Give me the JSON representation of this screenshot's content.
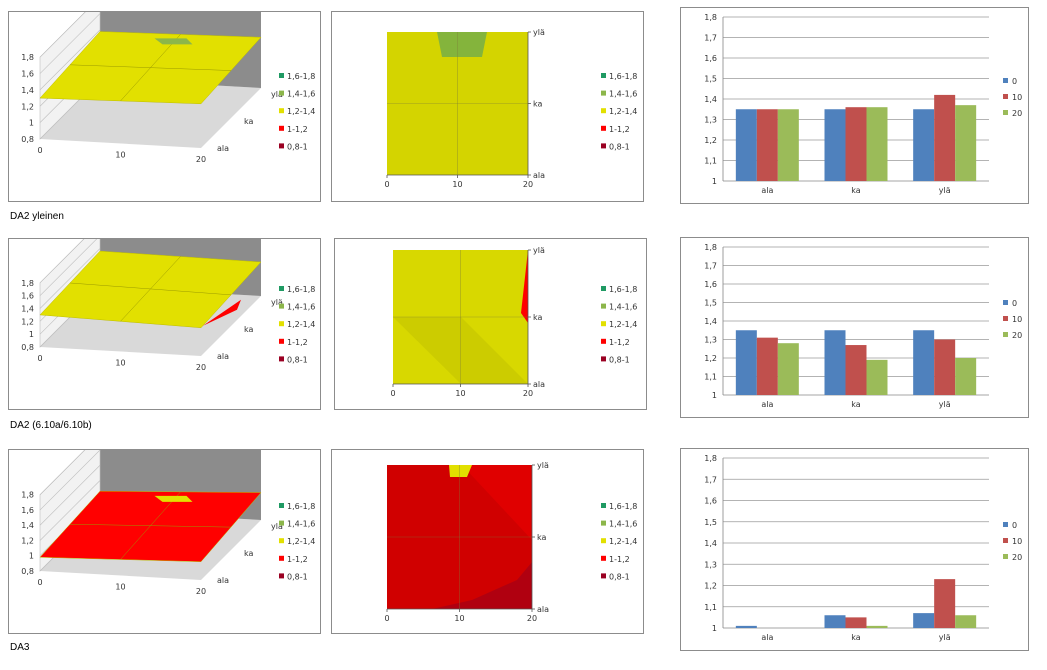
{
  "colors": {
    "band_1_6_1_8": "#1f9a63",
    "band_1_4_1_6": "#8cb64a",
    "band_1_2_1_4": "#e2e000",
    "band_1_1_2": "#ff0000",
    "band_0_8_1": "#9a0022",
    "series_0": "#4f81bd",
    "series_10": "#c0504d",
    "series_20": "#9bbb59",
    "wall": "#8c8c8c",
    "floor": "#d9d9d9"
  },
  "legend_bands": [
    {
      "label": "1,6-1,8",
      "color": "#1f9a63"
    },
    {
      "label": "1,4-1,6",
      "color": "#8cb64a"
    },
    {
      "label": "1,2-1,4",
      "color": "#e2e000"
    },
    {
      "label": "1-1,2",
      "color": "#ff0000"
    },
    {
      "label": "0,8-1",
      "color": "#9a0022"
    }
  ],
  "surface_axis": {
    "z_ticks": [
      "1,8",
      "1,6",
      "1,4",
      "1,2",
      "1",
      "0,8"
    ],
    "x_ticks": [
      "0",
      "10",
      "20"
    ],
    "depth_ticks": [
      "ala",
      "ka",
      "ylä"
    ]
  },
  "rows": [
    {
      "label": "DA2 yleinen"
    },
    {
      "label": "DA2 (6.10a/6.10b)"
    },
    {
      "label": "DA3"
    }
  ],
  "chart_data": [
    {
      "type": "bar",
      "categories": [
        "ala",
        "ka",
        "ylä"
      ],
      "series": [
        {
          "name": "0",
          "values": [
            1.35,
            1.35,
            1.35
          ]
        },
        {
          "name": "10",
          "values": [
            1.35,
            1.36,
            1.42
          ]
        },
        {
          "name": "20",
          "values": [
            1.35,
            1.36,
            1.37
          ]
        }
      ],
      "ylim": [
        1,
        1.8
      ],
      "yticks": [
        "1,8",
        "1,7",
        "1,6",
        "1,5",
        "1,4",
        "1,3",
        "1,2",
        "1,1",
        "1"
      ],
      "legend_position": "right",
      "grid": true
    },
    {
      "type": "bar",
      "categories": [
        "ala",
        "ka",
        "ylä"
      ],
      "series": [
        {
          "name": "0",
          "values": [
            1.35,
            1.35,
            1.35
          ]
        },
        {
          "name": "10",
          "values": [
            1.31,
            1.27,
            1.3
          ]
        },
        {
          "name": "20",
          "values": [
            1.28,
            1.19,
            1.2
          ]
        }
      ],
      "ylim": [
        1,
        1.8
      ],
      "yticks": [
        "1,8",
        "1,7",
        "1,6",
        "1,5",
        "1,4",
        "1,3",
        "1,2",
        "1,1",
        "1"
      ],
      "legend_position": "right",
      "grid": true
    },
    {
      "type": "bar",
      "categories": [
        "ala",
        "ka",
        "ylä"
      ],
      "series": [
        {
          "name": "0",
          "values": [
            1.01,
            1.06,
            1.07
          ]
        },
        {
          "name": "10",
          "values": [
            1.0,
            1.05,
            1.23
          ]
        },
        {
          "name": "20",
          "values": [
            1.0,
            1.01,
            1.06
          ]
        }
      ],
      "ylim": [
        1,
        1.8
      ],
      "yticks": [
        "1,8",
        "1,7",
        "1,6",
        "1,5",
        "1,4",
        "1,3",
        "1,2",
        "1,1",
        "1"
      ],
      "legend_position": "right",
      "grid": true
    }
  ]
}
